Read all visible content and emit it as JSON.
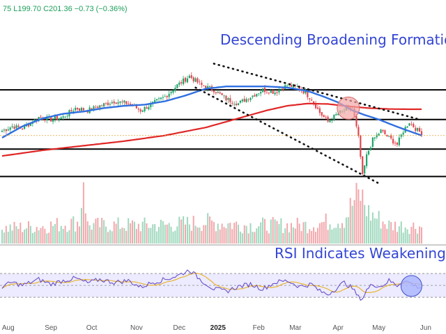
{
  "header": {
    "ohlc_text": "75  L199.70  C201.36  −0.73 (−0.36%)"
  },
  "colors": {
    "up": "#1fa36a",
    "down": "#e2474f",
    "ma_short": "#2f6fe0",
    "ma_long": "#e02626",
    "annotation": "#3345d4",
    "rsi_line": "#6a4fc7",
    "rsi_ma": "#e8b020",
    "rsi_band": "#ecebff",
    "circle_fill": "#f3a6a6",
    "rsi_circle_fill": "#a9b4ff"
  },
  "chart_data": {
    "type": "candlestick",
    "annotations": {
      "pattern_title": "Descending Broadening Formation",
      "rsi_title": "RSI Indicates Weakening"
    },
    "x_tick_labels": [
      {
        "label": "Aug",
        "i": 3
      },
      {
        "label": "Sep",
        "i": 24
      },
      {
        "label": "Oct",
        "i": 44
      },
      {
        "label": "Nov",
        "i": 66
      },
      {
        "label": "Dec",
        "i": 87
      },
      {
        "label": "2025",
        "i": 106,
        "bold": true
      },
      {
        "label": "Feb",
        "i": 126
      },
      {
        "label": "Mar",
        "i": 144
      },
      {
        "label": "Apr",
        "i": 165
      },
      {
        "label": "May",
        "i": 185
      },
      {
        "label": "Jun",
        "i": 208
      }
    ],
    "horizontal_levels": [
      236,
      223,
      210,
      198
    ],
    "trendlines": [
      {
        "i1": 104,
        "p1": 247.5,
        "i2": 205,
        "p2": 223.0
      },
      {
        "i1": 95,
        "p1": 237.0,
        "i2": 186,
        "p2": 194.5
      }
    ],
    "pattern_highlight": {
      "i": 170,
      "p": 228.0
    },
    "rsi_highlight": {
      "i": 201,
      "v": 49
    },
    "rsi_bands": [
      70,
      50,
      30
    ],
    "keypoints": {
      "price": [
        [
          0,
          218
        ],
        [
          5,
          220
        ],
        [
          10,
          219
        ],
        [
          18,
          224
        ],
        [
          24,
          223
        ],
        [
          30,
          224
        ],
        [
          36,
          228
        ],
        [
          42,
          227
        ],
        [
          48,
          229
        ],
        [
          55,
          231
        ],
        [
          62,
          230
        ],
        [
          68,
          227
        ],
        [
          74,
          230
        ],
        [
          80,
          233
        ],
        [
          86,
          238
        ],
        [
          92,
          242
        ],
        [
          98,
          238
        ],
        [
          104,
          236
        ],
        [
          110,
          232
        ],
        [
          116,
          230
        ],
        [
          122,
          233
        ],
        [
          128,
          236
        ],
        [
          134,
          235
        ],
        [
          140,
          238
        ],
        [
          146,
          237
        ],
        [
          152,
          232
        ],
        [
          156,
          226
        ],
        [
          160,
          222
        ],
        [
          164,
          225
        ],
        [
          168,
          227
        ],
        [
          172,
          228
        ],
        [
          175,
          215
        ],
        [
          177,
          198
        ],
        [
          179,
          207
        ],
        [
          182,
          214
        ],
        [
          186,
          218
        ],
        [
          190,
          215
        ],
        [
          194,
          212
        ],
        [
          197,
          218
        ],
        [
          200,
          222
        ],
        [
          203,
          219
        ],
        [
          206,
          217
        ]
      ],
      "volume": [
        [
          0,
          0.25
        ],
        [
          20,
          0.28
        ],
        [
          38,
          0.35
        ],
        [
          40,
          1.0
        ],
        [
          42,
          0.3
        ],
        [
          80,
          0.3
        ],
        [
          100,
          0.35
        ],
        [
          120,
          0.3
        ],
        [
          150,
          0.3
        ],
        [
          168,
          0.4
        ],
        [
          173,
          0.7
        ],
        [
          176,
          0.8
        ],
        [
          180,
          0.5
        ],
        [
          190,
          0.3
        ],
        [
          206,
          0.28
        ]
      ],
      "rsi": [
        [
          0,
          48
        ],
        [
          5,
          55
        ],
        [
          10,
          50
        ],
        [
          18,
          60
        ],
        [
          24,
          52
        ],
        [
          30,
          58
        ],
        [
          36,
          62
        ],
        [
          42,
          54
        ],
        [
          48,
          60
        ],
        [
          55,
          55
        ],
        [
          62,
          58
        ],
        [
          68,
          47
        ],
        [
          74,
          55
        ],
        [
          80,
          60
        ],
        [
          86,
          66
        ],
        [
          92,
          76
        ],
        [
          98,
          58
        ],
        [
          104,
          44
        ],
        [
          110,
          40
        ],
        [
          116,
          48
        ],
        [
          122,
          52
        ],
        [
          128,
          44
        ],
        [
          134,
          55
        ],
        [
          140,
          58
        ],
        [
          146,
          48
        ],
        [
          152,
          52
        ],
        [
          156,
          40
        ],
        [
          160,
          35
        ],
        [
          164,
          45
        ],
        [
          168,
          55
        ],
        [
          172,
          45
        ],
        [
          175,
          30
        ],
        [
          177,
          28
        ],
        [
          179,
          42
        ],
        [
          182,
          52
        ],
        [
          186,
          48
        ],
        [
          190,
          58
        ],
        [
          194,
          50
        ],
        [
          197,
          58
        ],
        [
          200,
          55
        ],
        [
          203,
          49
        ],
        [
          206,
          46
        ]
      ],
      "ma50": [
        [
          0,
          215
        ],
        [
          10,
          220
        ],
        [
          20,
          223.5
        ],
        [
          30,
          225.5
        ],
        [
          40,
          226.5
        ],
        [
          50,
          228
        ],
        [
          60,
          229
        ],
        [
          70,
          229.5
        ],
        [
          80,
          231
        ],
        [
          90,
          233.5
        ],
        [
          100,
          236.5
        ],
        [
          110,
          237.5
        ],
        [
          120,
          237.5
        ],
        [
          130,
          237.5
        ],
        [
          140,
          237
        ],
        [
          150,
          235.5
        ],
        [
          158,
          233
        ],
        [
          165,
          230.5
        ],
        [
          172,
          227
        ],
        [
          178,
          225
        ],
        [
          185,
          223
        ],
        [
          192,
          220.5
        ],
        [
          198,
          218.5
        ],
        [
          206,
          216
        ]
      ],
      "ma200": [
        [
          0,
          207
        ],
        [
          20,
          209.5
        ],
        [
          40,
          211.5
        ],
        [
          60,
          213.5
        ],
        [
          80,
          216
        ],
        [
          100,
          219.5
        ],
        [
          110,
          222
        ],
        [
          120,
          224.5
        ],
        [
          130,
          227
        ],
        [
          140,
          229
        ],
        [
          150,
          230
        ],
        [
          160,
          229.8
        ],
        [
          170,
          228.8
        ],
        [
          180,
          228
        ],
        [
          190,
          227.6
        ],
        [
          200,
          227.5
        ],
        [
          206,
          227.5
        ]
      ]
    },
    "price_range": [
      193,
      251
    ],
    "rsi_range": [
      15,
      90
    ],
    "bars": 207
  }
}
